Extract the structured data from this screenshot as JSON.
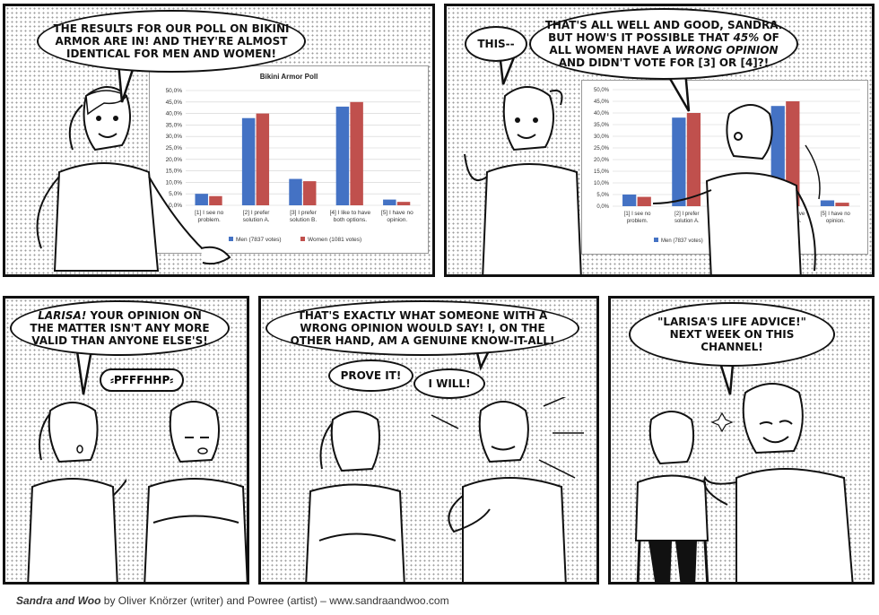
{
  "panel1": {
    "bubble": "The results for our poll on bikini armor are in! And they're almost identical for men and women!"
  },
  "panel2": {
    "bubble_left": "This--",
    "bubble_main_1": "That's all well and good, Sandra. But how's it possible that ",
    "bubble_main_pct": "45%",
    "bubble_main_2": " of all women have a ",
    "bubble_main_em": "wrong opinion",
    "bubble_main_3": " and didn't vote for [3] or [4]?!"
  },
  "panel3": {
    "bubble_name": "Larisa!",
    "bubble_rest": " Your opinion on the matter isn't any more valid than anyone else's!",
    "sfx": "PFFFHHP"
  },
  "panel4": {
    "bubble": "That's exactly what someone with a wrong opinion would say! I, on the other hand, am a genuine know-it-all!",
    "prove": "Prove it!",
    "will": "I will!"
  },
  "panel5": {
    "bubble": "\"Larisa's Life Advice!\" Next week on this channel!"
  },
  "credit": {
    "title": "Sandra and Woo",
    "rest": " by Oliver Knörzer (writer) and Powree (artist) – www.sandraandwoo.com"
  },
  "chart_data": {
    "type": "bar",
    "title": "Bikini Armor Poll",
    "categories": [
      "[1] I see no problem.",
      "[2] I prefer solution A.",
      "[3] I prefer solution B.",
      "[4] I like to have both options.",
      "[5] I have no opinion."
    ],
    "category_lines": [
      [
        "[1] I see no",
        "problem."
      ],
      [
        "[2] I prefer",
        "solution A."
      ],
      [
        "[3] I prefer",
        "solution B."
      ],
      [
        "[4] I like to have",
        "both options."
      ],
      [
        "[5] I have no",
        "opinion."
      ]
    ],
    "series": [
      {
        "name": "Men (7837 votes)",
        "color": "#4472c4",
        "values": [
          5.0,
          38.0,
          11.5,
          43.0,
          2.5
        ]
      },
      {
        "name": "Women (1081 votes)",
        "color": "#c0504d",
        "values": [
          4.0,
          40.0,
          10.5,
          45.0,
          1.5
        ]
      }
    ],
    "ylim": [
      0,
      50
    ],
    "yticks": [
      "0,0%",
      "5,0%",
      "10,0%",
      "15,0%",
      "20,0%",
      "25,0%",
      "30,0%",
      "35,0%",
      "40,0%",
      "45,0%",
      "50,0%"
    ],
    "legend": "bottom"
  }
}
